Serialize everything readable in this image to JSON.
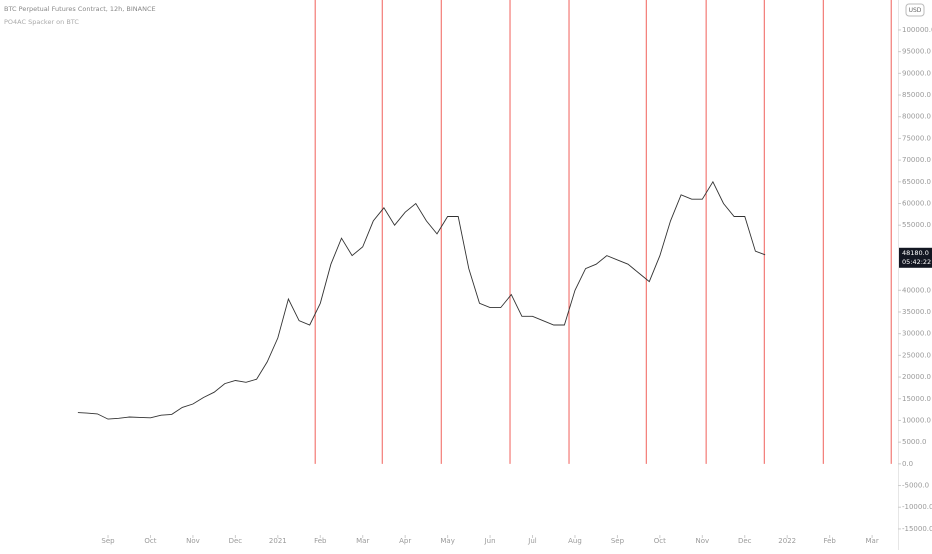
{
  "chart_data": {
    "type": "line",
    "title": "BTC Perpetual Futures Contract, 12h, BINANCE",
    "subtitle": "PO4AC Spacker on BTC",
    "currency": "USD",
    "x": [
      -0.71,
      -0.5,
      -0.25,
      0,
      0.25,
      0.5,
      0.75,
      1,
      1.25,
      1.5,
      1.75,
      2,
      2.25,
      2.5,
      2.75,
      3,
      3.25,
      3.5,
      3.75,
      4,
      4.25,
      4.5,
      4.75,
      5,
      5.25,
      5.5,
      5.75,
      6,
      6.25,
      6.5,
      6.75,
      7,
      7.25,
      7.5,
      7.75,
      8,
      8.25,
      8.5,
      8.75,
      9,
      9.25,
      9.5,
      9.75,
      10,
      10.25,
      10.5,
      10.75,
      11,
      11.25,
      11.5,
      11.75,
      12,
      12.25,
      12.5,
      12.75,
      13,
      13.25,
      13.5,
      13.75,
      14,
      14.25,
      14.5,
      14.75,
      15,
      15.25,
      15.48
    ],
    "series": [
      {
        "name": "BTCUSDT",
        "color": "#333333",
        "values": [
          11800,
          11700,
          11500,
          10300,
          10500,
          10800,
          10700,
          10600,
          11200,
          11400,
          13000,
          13800,
          15300,
          16500,
          18500,
          19200,
          18800,
          19500,
          23500,
          29000,
          38000,
          33000,
          32000,
          37000,
          46000,
          52000,
          48000,
          50000,
          56000,
          59000,
          55000,
          58000,
          60000,
          56000,
          53000,
          57000,
          57000,
          45000,
          37000,
          36000,
          36000,
          39000,
          34000,
          34000,
          33000,
          32000,
          32000,
          40000,
          45000,
          46000,
          48000,
          47000,
          46000,
          44000,
          42000,
          48000,
          56000,
          62000,
          61000,
          61000,
          65000,
          60000,
          57000,
          57000,
          49000,
          48180
        ]
      }
    ],
    "xlim": [
      -2.545,
      18.61
    ],
    "xticks": [
      {
        "value": 0,
        "label": "Sep"
      },
      {
        "value": 1,
        "label": "Oct"
      },
      {
        "value": 2,
        "label": "Nov"
      },
      {
        "value": 3,
        "label": "Dec"
      },
      {
        "value": 4,
        "label": "2021"
      },
      {
        "value": 5,
        "label": "Feb"
      },
      {
        "value": 6,
        "label": "Mar"
      },
      {
        "value": 7,
        "label": "Apr"
      },
      {
        "value": 8,
        "label": "May"
      },
      {
        "value": 9,
        "label": "Jun"
      },
      {
        "value": 10,
        "label": "Jul"
      },
      {
        "value": 11,
        "label": "Aug"
      },
      {
        "value": 12,
        "label": "Sep"
      },
      {
        "value": 13,
        "label": "Oct"
      },
      {
        "value": 14,
        "label": "Nov"
      },
      {
        "value": 15,
        "label": "Dec"
      },
      {
        "value": 16,
        "label": "2022"
      },
      {
        "value": 17,
        "label": "Feb"
      },
      {
        "value": 18,
        "label": "Mar"
      }
    ],
    "ylim": [
      -16400,
      106900
    ],
    "yticks": [
      {
        "value": 100000,
        "label": "100000.0"
      },
      {
        "value": 95000,
        "label": "95000.0"
      },
      {
        "value": 90000,
        "label": "90000.0"
      },
      {
        "value": 85000,
        "label": "85000.0"
      },
      {
        "value": 80000,
        "label": "80000.0"
      },
      {
        "value": 75000,
        "label": "75000.0"
      },
      {
        "value": 70000,
        "label": "70000.0"
      },
      {
        "value": 65000,
        "label": "65000.0"
      },
      {
        "value": 60000,
        "label": "60000.0"
      },
      {
        "value": 55000,
        "label": "55000.0"
      },
      {
        "value": 40000,
        "label": "40000.0"
      },
      {
        "value": 35000,
        "label": "35000.0"
      },
      {
        "value": 30000,
        "label": "30000.0"
      },
      {
        "value": 25000,
        "label": "25000.0"
      },
      {
        "value": 20000,
        "label": "20000.0"
      },
      {
        "value": 15000,
        "label": "15000.0"
      },
      {
        "value": 10000,
        "label": "10000.0"
      },
      {
        "value": 5000,
        "label": "5000.0"
      },
      {
        "value": 0,
        "label": "0.0"
      },
      {
        "value": -5000,
        "label": "-5000.0"
      },
      {
        "value": -10000,
        "label": "-10000.0"
      },
      {
        "value": -15000,
        "label": "-15000.0"
      }
    ],
    "vlines": {
      "color": "#f0605a",
      "x": [
        4.88,
        6.46,
        7.85,
        9.47,
        10.86,
        12.68,
        14.09,
        15.46,
        16.85,
        18.45
      ]
    },
    "last_price": {
      "value": 48180,
      "label": "48180.0"
    },
    "countdown": "05:42:22"
  }
}
